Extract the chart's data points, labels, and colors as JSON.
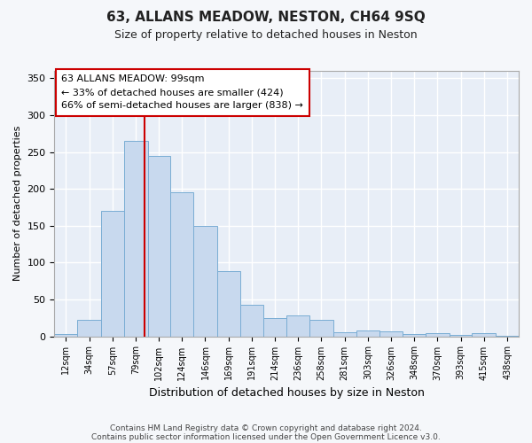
{
  "title": "63, ALLANS MEADOW, NESTON, CH64 9SQ",
  "subtitle": "Size of property relative to detached houses in Neston",
  "xlabel": "Distribution of detached houses by size in Neston",
  "ylabel": "Number of detached properties",
  "bar_color": "#c8d9ee",
  "bar_edge_color": "#7aadd4",
  "background_color": "#e8eef7",
  "grid_color": "#ffffff",
  "fig_background": "#f5f7fa",
  "annotation_line_color": "#cc0000",
  "annotation_box_color": "#cc0000",
  "annotation_text": "63 ALLANS MEADOW: 99sqm\n← 33% of detached houses are smaller (424)\n66% of semi-detached houses are larger (838) →",
  "footer_line1": "Contains HM Land Registry data © Crown copyright and database right 2024.",
  "footer_line2": "Contains public sector information licensed under the Open Government Licence v3.0.",
  "property_size": 99,
  "bins": [
    12,
    34,
    57,
    79,
    102,
    124,
    146,
    169,
    191,
    214,
    236,
    258,
    281,
    303,
    326,
    348,
    370,
    393,
    415,
    438,
    460
  ],
  "bar_heights": [
    3,
    22,
    170,
    265,
    245,
    195,
    150,
    88,
    43,
    25,
    28,
    22,
    5,
    8,
    7,
    3,
    4,
    2,
    4,
    1
  ],
  "ylim": [
    0,
    360
  ],
  "yticks": [
    0,
    50,
    100,
    150,
    200,
    250,
    300,
    350
  ]
}
